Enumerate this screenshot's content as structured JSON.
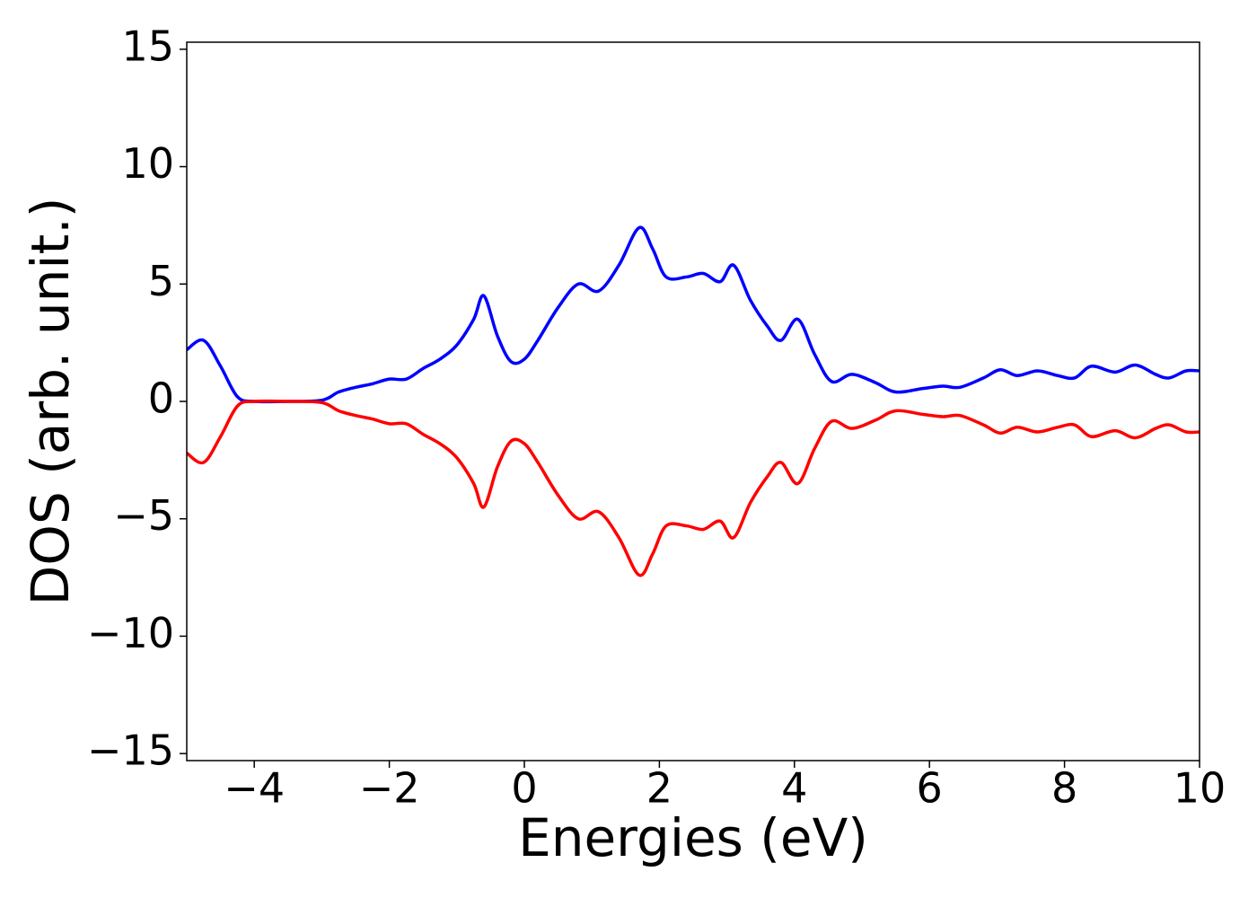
{
  "chart_data": {
    "type": "line",
    "xlabel": "Energies (eV)",
    "ylabel": "DOS (arb. unit.)",
    "x": [
      -5,
      -4.75,
      -4.5,
      -4.25,
      -4,
      -3.5,
      -3,
      -2.75,
      -2.5,
      -2.25,
      -2,
      -1.75,
      -1.5,
      -1.25,
      -1,
      -0.75,
      -0.6,
      -0.4,
      -0.2,
      0,
      0.2,
      0.5,
      0.8,
      1.1,
      1.4,
      1.7,
      1.9,
      2.1,
      2.4,
      2.65,
      2.9,
      3.1,
      3.35,
      3.6,
      3.8,
      4.05,
      4.3,
      4.55,
      4.85,
      5.2,
      5.5,
      5.9,
      6.2,
      6.45,
      6.8,
      7.05,
      7.3,
      7.6,
      7.9,
      8.15,
      8.4,
      8.75,
      9.05,
      9.35,
      9.55,
      9.8,
      10
    ],
    "series": [
      {
        "color": "#0000ff",
        "values": [
          2.2,
          2.6,
          1.5,
          0.2,
          0,
          0,
          0.05,
          0.4,
          0.6,
          0.75,
          0.95,
          0.95,
          1.4,
          1.8,
          2.4,
          3.5,
          4.5,
          2.8,
          1.7,
          1.8,
          2.6,
          4.0,
          5.0,
          4.7,
          5.8,
          7.4,
          6.5,
          5.3,
          5.3,
          5.45,
          5.1,
          5.8,
          4.3,
          3.2,
          2.6,
          3.5,
          2.0,
          0.85,
          1.15,
          0.8,
          0.4,
          0.55,
          0.65,
          0.6,
          1.0,
          1.35,
          1.1,
          1.3,
          1.1,
          1.0,
          1.5,
          1.25,
          1.55,
          1.15,
          1.0,
          1.3,
          1.3
        ]
      },
      {
        "color": "#ff0000",
        "values": [
          -2.2,
          -2.6,
          -1.5,
          -0.2,
          0,
          0,
          -0.05,
          -0.4,
          -0.6,
          -0.75,
          -0.95,
          -0.95,
          -1.4,
          -1.8,
          -2.4,
          -3.5,
          -4.5,
          -2.8,
          -1.7,
          -1.8,
          -2.6,
          -4.0,
          -5.0,
          -4.7,
          -5.8,
          -7.4,
          -6.5,
          -5.3,
          -5.3,
          -5.45,
          -5.1,
          -5.8,
          -4.3,
          -3.2,
          -2.6,
          -3.5,
          -2.0,
          -0.85,
          -1.15,
          -0.8,
          -0.4,
          -0.55,
          -0.65,
          -0.6,
          -1.0,
          -1.35,
          -1.1,
          -1.3,
          -1.1,
          -1.0,
          -1.5,
          -1.25,
          -1.55,
          -1.15,
          -1.0,
          -1.3,
          -1.3
        ]
      }
    ],
    "xlim": [
      -5,
      10
    ],
    "xticks": [
      {
        "value": -4,
        "label": "−4"
      },
      {
        "value": -2,
        "label": "−2"
      },
      0,
      2,
      4,
      6,
      8,
      10
    ],
    "ylim": [
      -15.3,
      15.3
    ],
    "yticks": [
      {
        "value": -15,
        "label": "−15"
      },
      {
        "value": -10,
        "label": "−10"
      },
      {
        "value": -5,
        "label": "−5"
      },
      0,
      5,
      10,
      15
    ],
    "grid": false
  }
}
